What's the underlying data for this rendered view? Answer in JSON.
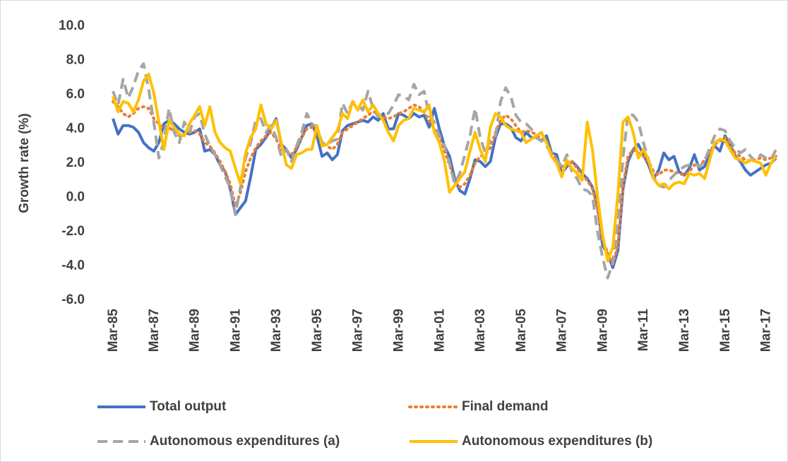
{
  "chart_data": {
    "type": "line",
    "y_label": "Growth rate (%)",
    "categories": [
      "Mar-85",
      null,
      null,
      null,
      null,
      null,
      null,
      null,
      "Mar-87",
      null,
      null,
      null,
      null,
      null,
      null,
      null,
      "Mar-89",
      null,
      null,
      null,
      null,
      null,
      null,
      null,
      "Mar-91",
      null,
      null,
      null,
      null,
      null,
      null,
      null,
      "Mar-93",
      null,
      null,
      null,
      null,
      null,
      null,
      null,
      "Mar-95",
      null,
      null,
      null,
      null,
      null,
      null,
      null,
      "Mar-97",
      null,
      null,
      null,
      null,
      null,
      null,
      null,
      "Mar-99",
      null,
      null,
      null,
      null,
      null,
      null,
      null,
      "Mar-01",
      null,
      null,
      null,
      null,
      null,
      null,
      null,
      "Mar-03",
      null,
      null,
      null,
      null,
      null,
      null,
      null,
      "Mar-05",
      null,
      null,
      null,
      null,
      null,
      null,
      null,
      "Mar-07",
      null,
      null,
      null,
      null,
      null,
      null,
      null,
      "Mar-09",
      null,
      null,
      null,
      null,
      null,
      null,
      null,
      "Mar-11",
      null,
      null,
      null,
      null,
      null,
      null,
      null,
      "Mar-13",
      null,
      null,
      null,
      null,
      null,
      null,
      null,
      "Mar-15",
      null,
      null,
      null,
      null,
      null,
      null,
      null,
      "Mar-17",
      null,
      null
    ],
    "series": [
      {
        "name": "Total output",
        "color": "#4472c4",
        "style": "solid",
        "values": [
          4.6,
          3.7,
          4.2,
          4.2,
          4.1,
          3.8,
          3.2,
          2.9,
          2.7,
          3.2,
          4.3,
          4.5,
          4.3,
          4.0,
          3.8,
          3.7,
          3.8,
          4.0,
          2.7,
          2.8,
          2.5,
          1.9,
          1.5,
          0.5,
          -1.0,
          -0.6,
          -0.2,
          1.2,
          2.8,
          3.1,
          3.5,
          4.0,
          4.6,
          3.1,
          2.8,
          2.3,
          2.8,
          3.5,
          4.2,
          4.3,
          3.6,
          2.4,
          2.6,
          2.2,
          2.5,
          3.9,
          4.2,
          4.3,
          4.4,
          4.5,
          4.4,
          4.7,
          4.5,
          4.9,
          4.0,
          4.0,
          4.9,
          4.8,
          4.6,
          4.9,
          4.7,
          4.8,
          4.1,
          5.2,
          4.0,
          3.0,
          2.4,
          1.1,
          0.4,
          0.2,
          1.1,
          2.2,
          2.1,
          1.8,
          2.1,
          3.5,
          4.3,
          4.3,
          4.1,
          3.5,
          3.3,
          3.8,
          3.5,
          3.5,
          3.3,
          3.6,
          2.6,
          2.5,
          1.4,
          1.8,
          2.1,
          1.8,
          1.4,
          1.1,
          0.6,
          -0.5,
          -2.8,
          -3.3,
          -4.1,
          -3.1,
          0.5,
          2.1,
          2.8,
          3.1,
          2.5,
          1.9,
          1.1,
          1.6,
          2.6,
          2.2,
          2.4,
          1.5,
          1.3,
          1.7,
          2.5,
          1.6,
          1.8,
          2.6,
          3.0,
          2.7,
          3.6,
          3.1,
          2.4,
          2.1,
          1.6,
          1.3,
          1.5,
          1.7,
          1.9,
          2.0,
          2.3
        ]
      },
      {
        "name": "Final demand",
        "color": "#ed7d31",
        "style": "dotted",
        "values": [
          5.6,
          5.3,
          4.9,
          4.7,
          4.9,
          5.2,
          5.3,
          5.2,
          4.6,
          4.3,
          4.0,
          4.1,
          3.8,
          3.6,
          3.7,
          3.8,
          3.9,
          3.7,
          3.2,
          3.0,
          2.6,
          2.1,
          1.5,
          0.8,
          -0.5,
          0.3,
          1.5,
          2.3,
          2.9,
          3.3,
          3.6,
          3.8,
          3.4,
          2.8,
          2.7,
          2.5,
          2.9,
          3.5,
          4.0,
          4.1,
          3.8,
          3.2,
          3.0,
          2.8,
          3.1,
          3.8,
          4.0,
          4.2,
          4.4,
          4.6,
          4.8,
          5.0,
          4.9,
          4.7,
          4.6,
          4.7,
          4.9,
          5.0,
          5.2,
          5.4,
          5.3,
          5.0,
          4.5,
          4.0,
          3.4,
          2.7,
          1.9,
          0.9,
          0.6,
          0.8,
          1.3,
          2.0,
          2.4,
          2.5,
          2.9,
          3.8,
          4.5,
          4.8,
          4.6,
          4.2,
          3.8,
          3.9,
          3.8,
          3.7,
          3.4,
          3.2,
          2.6,
          2.2,
          1.8,
          1.9,
          2.1,
          1.7,
          1.3,
          1.0,
          0.5,
          -0.7,
          -2.5,
          -3.2,
          -3.9,
          -2.8,
          0.7,
          2.4,
          2.8,
          2.6,
          2.4,
          2.1,
          1.5,
          1.3,
          1.6,
          1.6,
          1.5,
          1.4,
          1.3,
          1.5,
          1.9,
          1.8,
          2.2,
          2.7,
          3.1,
          3.3,
          3.5,
          3.0,
          2.6,
          2.4,
          2.2,
          2.1,
          2.2,
          2.3,
          2.2,
          2.3,
          2.4
        ]
      },
      {
        "name": "Autonomous expenditures (a)",
        "color": "#a5a5a5",
        "style": "dashed",
        "values": [
          6.2,
          5.4,
          6.9,
          5.8,
          6.5,
          7.4,
          7.8,
          6.3,
          4.4,
          2.3,
          3.3,
          5.2,
          3.8,
          3.2,
          4.4,
          3.8,
          4.7,
          4.9,
          3.7,
          3.0,
          2.5,
          1.9,
          1.2,
          0.6,
          -1.0,
          0.6,
          2.3,
          3.2,
          4.5,
          4.6,
          3.8,
          4.2,
          3.5,
          2.4,
          2.8,
          2.1,
          3.0,
          3.8,
          4.9,
          4.3,
          4.1,
          3.2,
          3.1,
          3.3,
          3.4,
          5.5,
          4.9,
          5.6,
          5.4,
          5.1,
          6.2,
          5.2,
          4.7,
          4.9,
          4.9,
          5.4,
          6.0,
          5.9,
          5.7,
          6.6,
          6.0,
          6.2,
          4.8,
          4.4,
          3.6,
          3.0,
          2.0,
          0.8,
          1.4,
          2.5,
          3.6,
          5.2,
          3.5,
          2.6,
          3.4,
          3.6,
          5.6,
          6.4,
          5.9,
          4.8,
          4.4,
          4.3,
          4.0,
          3.5,
          3.3,
          3.0,
          2.6,
          2.2,
          1.8,
          2.5,
          1.5,
          1.1,
          0.5,
          0.4,
          0.1,
          -2.0,
          -3.5,
          -4.7,
          -3.8,
          -1.5,
          2.3,
          4.9,
          4.8,
          4.4,
          3.2,
          2.2,
          1.2,
          0.7,
          0.6,
          1.0,
          1.3,
          1.6,
          1.8,
          1.9,
          2.0,
          1.8,
          2.1,
          2.9,
          3.6,
          4.0,
          3.9,
          3.3,
          2.9,
          2.6,
          2.8,
          2.4,
          2.1,
          2.5,
          2.3,
          2.2,
          2.8
        ]
      },
      {
        "name": "Autonomous expenditures (b)",
        "color": "#ffc000",
        "style": "solid",
        "values": [
          5.9,
          5.0,
          5.6,
          5.5,
          5.0,
          5.7,
          6.8,
          7.2,
          6.1,
          4.4,
          2.8,
          4.5,
          4.1,
          3.7,
          3.6,
          4.3,
          4.8,
          5.3,
          4.2,
          5.3,
          3.8,
          3.2,
          2.9,
          2.7,
          1.7,
          0.8,
          2.6,
          3.5,
          4.0,
          5.4,
          4.3,
          4.0,
          4.5,
          3.2,
          1.9,
          1.7,
          2.5,
          2.6,
          2.8,
          2.8,
          4.2,
          3.0,
          3.1,
          3.5,
          3.9,
          4.9,
          4.6,
          5.6,
          5.1,
          5.7,
          5.0,
          5.4,
          4.9,
          4.5,
          3.8,
          3.3,
          4.2,
          4.5,
          4.6,
          5.2,
          5.1,
          5.0,
          5.4,
          3.8,
          3.2,
          2.1,
          0.3,
          0.7,
          1.1,
          1.5,
          2.7,
          3.8,
          2.8,
          2.1,
          4.1,
          4.9,
          4.7,
          4.2,
          4.0,
          3.9,
          3.8,
          3.2,
          3.4,
          3.6,
          3.8,
          3.2,
          2.4,
          2.0,
          1.2,
          2.2,
          1.7,
          1.4,
          1.0,
          4.4,
          2.8,
          0.1,
          -2.2,
          -3.7,
          -2.9,
          0.2,
          4.4,
          4.7,
          3.8,
          2.3,
          2.8,
          2.2,
          1.1,
          0.7,
          0.8,
          0.5,
          0.8,
          0.9,
          0.8,
          1.4,
          1.3,
          1.4,
          1.1,
          2.2,
          3.2,
          3.4,
          3.3,
          2.8,
          2.3,
          2.2,
          2.0,
          2.2,
          2.1,
          2.0,
          1.3,
          2.0,
          2.4
        ]
      }
    ],
    "ylim": [
      -6,
      10
    ],
    "yticks": [
      {
        "value": -6,
        "label": "-6.0"
      },
      {
        "value": -4,
        "label": "-4.0"
      },
      {
        "value": -2,
        "label": "-2.0"
      },
      {
        "value": 0,
        "label": "0.0"
      },
      {
        "value": 2,
        "label": "2.0"
      },
      {
        "value": 4,
        "label": "4.0"
      },
      {
        "value": 6,
        "label": "6.0"
      },
      {
        "value": 8,
        "label": "8.0"
      },
      {
        "value": 10,
        "label": "10.0"
      }
    ],
    "grid": false,
    "legend": "bottom"
  }
}
